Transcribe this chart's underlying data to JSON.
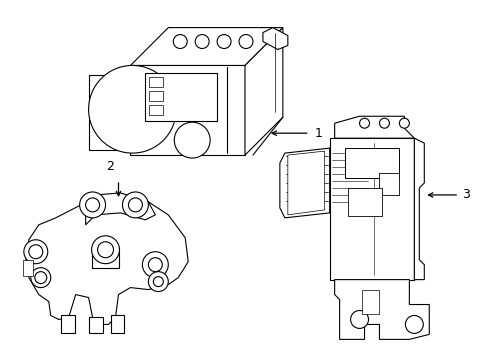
{
  "background_color": "#ffffff",
  "line_color": "#000000",
  "line_width": 0.8,
  "figsize": [
    4.89,
    3.6
  ],
  "dpi": 100
}
